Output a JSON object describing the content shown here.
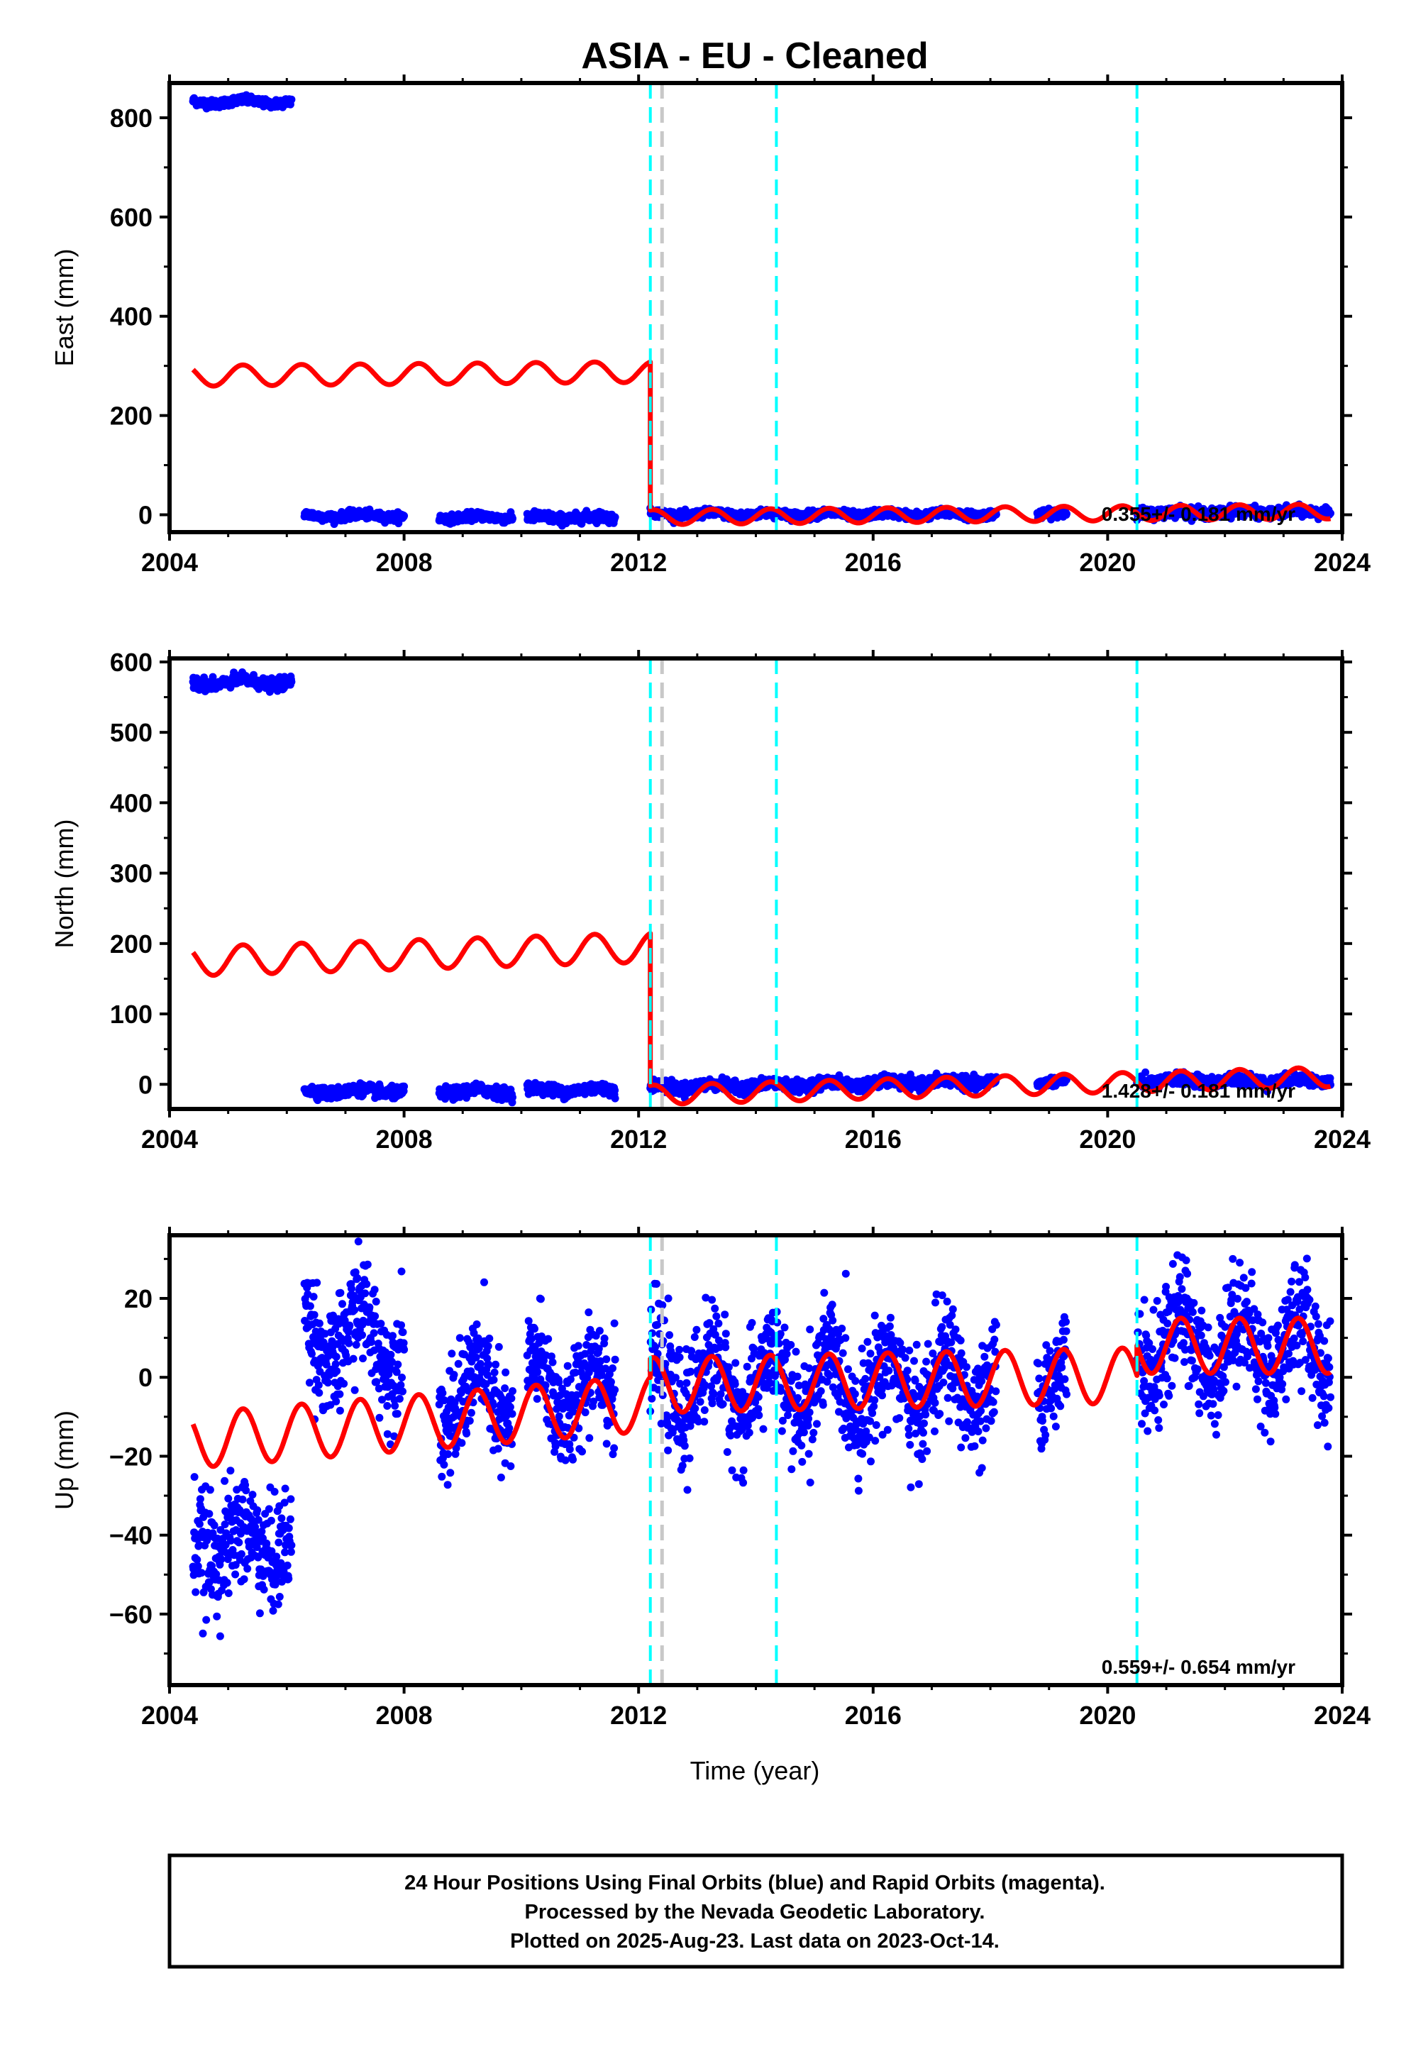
{
  "chart_data": {
    "title": "ASIA  - EU - Cleaned",
    "type": "scatter",
    "xlabel": "Time (year)",
    "xlim": [
      2004,
      2024
    ],
    "x_ticks": [
      2004,
      2008,
      2012,
      2016,
      2020,
      2024
    ],
    "x_tick_labels": [
      "2004",
      "2008",
      "2012",
      "2016",
      "2020",
      "2024"
    ],
    "equipment_change_lines": {
      "color": "#00ffff",
      "style": "dashed",
      "x": [
        2012.2,
        2014.35,
        2020.5
      ]
    },
    "earthquake_line": {
      "color": "#c8c8c8",
      "style": "dashed",
      "x": 2012.4
    },
    "colors": {
      "data": "#0000ff",
      "model": "#ff0000",
      "frame": "#000000"
    },
    "panels": [
      {
        "ylabel": "East (mm)",
        "ylim": [
          -35,
          870
        ],
        "y_ticks": [
          0,
          200,
          400,
          600,
          800
        ],
        "y_tick_labels": [
          "0",
          "200",
          "400",
          "600",
          "800"
        ],
        "rate_label": "0.355+/- 0.181 mm/yr",
        "data_segments": [
          {
            "start": 2004.4,
            "end": 2006.08,
            "level": 832,
            "amp": 4,
            "noise": 4
          },
          {
            "start": 2006.3,
            "end": 2008.0,
            "level": -2,
            "amp": 3,
            "noise": 4
          },
          {
            "start": 2008.6,
            "end": 2009.85,
            "level": -5,
            "amp": 3,
            "noise": 4
          },
          {
            "start": 2010.1,
            "end": 2011.6,
            "level": -6,
            "amp": 3,
            "noise": 5
          },
          {
            "start": 2012.2,
            "end": 2018.1,
            "level": 1,
            "amp": 3,
            "noise": 4
          },
          {
            "start": 2018.8,
            "end": 2019.3,
            "level": 2,
            "amp": 2,
            "noise": 4
          },
          {
            "start": 2020.5,
            "end": 2023.8,
            "level": 5,
            "amp": 3,
            "noise": 5
          }
        ],
        "model_segments": [
          {
            "start": 2004.4,
            "end": 2012.2,
            "level": 280,
            "trend": 1.0,
            "amp": 21
          },
          {
            "start": 2012.2,
            "end": 2023.8,
            "level": -5,
            "trend": 1.0,
            "amp": 15
          }
        ]
      },
      {
        "ylabel": "North (mm)",
        "ylim": [
          -35,
          605
        ],
        "y_ticks": [
          0,
          100,
          200,
          300,
          400,
          500,
          600
        ],
        "y_tick_labels": [
          "0",
          "100",
          "200",
          "300",
          "400",
          "500",
          "600"
        ],
        "rate_label": "1.428+/- 0.181 mm/yr",
        "data_segments": [
          {
            "start": 2004.4,
            "end": 2006.08,
            "level": 571,
            "amp": 4,
            "noise": 4
          },
          {
            "start": 2006.3,
            "end": 2008.0,
            "level": -10,
            "amp": 3,
            "noise": 4
          },
          {
            "start": 2008.6,
            "end": 2009.85,
            "level": -10,
            "amp": 3,
            "noise": 4
          },
          {
            "start": 2010.1,
            "end": 2011.6,
            "level": -8,
            "amp": 3,
            "noise": 4
          },
          {
            "start": 2012.2,
            "end": 2018.1,
            "level": -4,
            "trend": 1.4,
            "amp": 3,
            "noise": 4
          },
          {
            "start": 2018.8,
            "end": 2019.3,
            "level": 3,
            "amp": 2,
            "noise": 3
          },
          {
            "start": 2020.5,
            "end": 2023.8,
            "level": 5,
            "amp": 3,
            "noise": 4
          }
        ],
        "model_segments": [
          {
            "start": 2004.4,
            "end": 2012.2,
            "level": 175,
            "trend": 2.5,
            "amp": 21
          },
          {
            "start": 2012.2,
            "end": 2023.8,
            "level": -15,
            "trend": 2.2,
            "amp": 14
          }
        ]
      },
      {
        "ylabel": "Up (mm)",
        "ylim": [
          -78,
          36
        ],
        "y_ticks": [
          -60,
          -40,
          -20,
          0,
          20
        ],
        "y_tick_labels": [
          "−60",
          "−40",
          "−20",
          "0",
          "20"
        ],
        "rate_label": "0.559+/- 0.654 mm/yr",
        "data_segments": [
          {
            "start": 2004.4,
            "end": 2006.08,
            "level": -42,
            "amp": 4,
            "noise": 7
          },
          {
            "start": 2006.3,
            "end": 2008.0,
            "level": 10,
            "amp": 8,
            "noise": 7
          },
          {
            "start": 2008.6,
            "end": 2009.85,
            "level": -5,
            "amp": 8,
            "noise": 7
          },
          {
            "start": 2010.1,
            "end": 2011.6,
            "level": -3,
            "amp": 8,
            "noise": 7
          },
          {
            "start": 2012.2,
            "end": 2018.1,
            "level": -2,
            "amp": 8,
            "noise": 7
          },
          {
            "start": 2018.8,
            "end": 2019.3,
            "level": -2,
            "amp": 6,
            "noise": 6
          },
          {
            "start": 2020.5,
            "end": 2023.8,
            "level": 8,
            "amp": 8,
            "noise": 7
          }
        ],
        "model_segments": [
          {
            "start": 2004.4,
            "end": 2012.2,
            "level": -16,
            "trend": 1.2,
            "amp": 7
          },
          {
            "start": 2012.2,
            "end": 2020.5,
            "level": -2,
            "trend": 0.3,
            "amp": 7
          },
          {
            "start": 2020.5,
            "end": 2023.8,
            "level": 8,
            "trend": 0,
            "amp": 7
          }
        ]
      }
    ]
  },
  "footer": {
    "line1": "24 Hour Positions Using Final Orbits (blue) and Rapid Orbits (magenta).",
    "line2": "Processed by the Nevada Geodetic Laboratory.",
    "line3": "Plotted on 2025-Aug-23. Last data on 2023-Oct-14."
  }
}
